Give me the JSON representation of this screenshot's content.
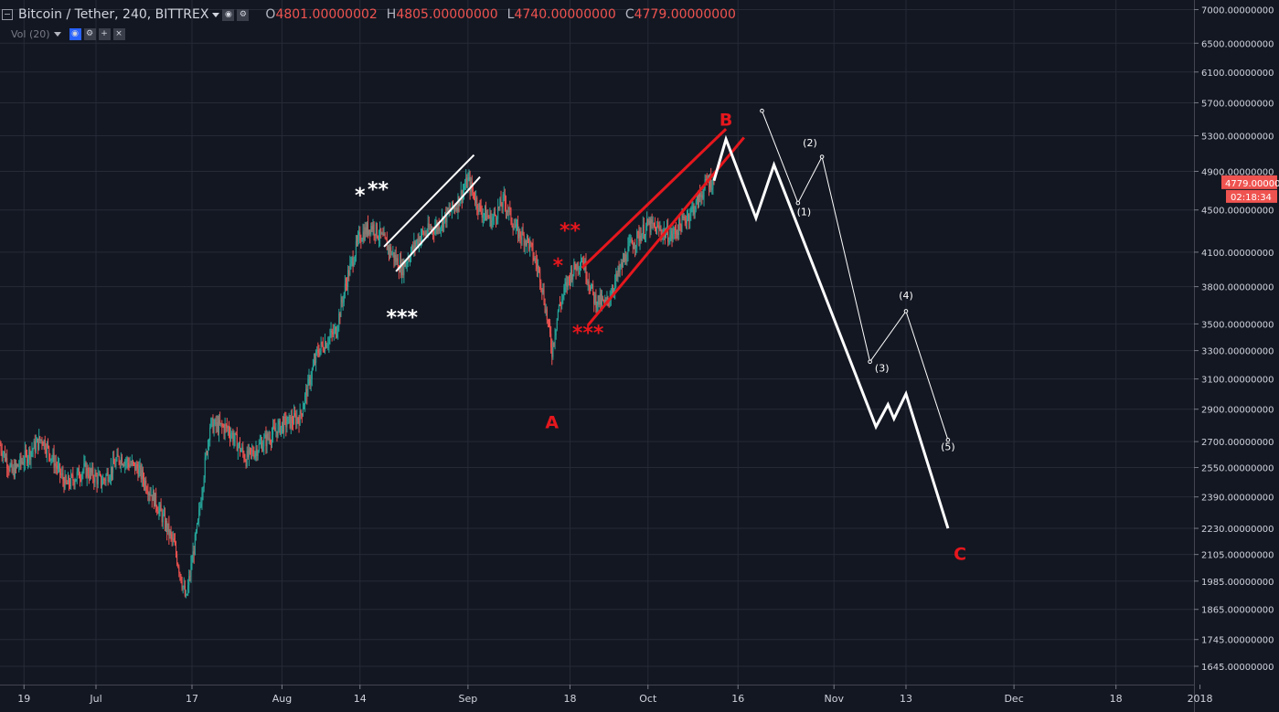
{
  "header": {
    "symbol": "Bitcoin / Tether, 240, BITTREX",
    "o_label": "O",
    "o_value": "4801.00000002",
    "h_label": "H",
    "h_value": "4805.00000000",
    "l_label": "L",
    "l_value": "4740.00000000",
    "c_label": "C",
    "c_value": "4779.00000000",
    "volume_label": "Vol (20)"
  },
  "colors": {
    "background": "#131722",
    "grid": "#262a36",
    "up_candle": "#26a69a",
    "down_candle": "#ef5350",
    "annotation_red": "#e5171d",
    "annotation_white": "#ffffff",
    "price_tag": "#ef5350"
  },
  "chart_data": {
    "type": "candlestick",
    "symbol": "BTC/USDT",
    "interval": "240",
    "exchange": "BITTREX",
    "y_axis": {
      "ticks": [
        7000,
        6500,
        6100,
        5700,
        5300,
        4900,
        4500,
        4100,
        3800,
        3500,
        3300,
        3100,
        2900,
        2700,
        2550,
        2390,
        2230,
        2105,
        1985,
        1865,
        1745,
        1645
      ],
      "tick_labels": [
        "7000.00000000",
        "6500.00000000",
        "6100.00000000",
        "5700.00000000",
        "5300.00000000",
        "4900.00000000",
        "4500.00000000",
        "4100.00000000",
        "3800.00000000",
        "3500.00000000",
        "3300.00000000",
        "3100.00000000",
        "2900.00000000",
        "2700.00000000",
        "2550.00000000",
        "2390.00000000",
        "2230.00000000",
        "2105.00000000",
        "1985.00000000",
        "1865.00000000",
        "1745.00000000",
        "1645.00000000"
      ],
      "scale": "log",
      "range": [
        1580,
        7150
      ]
    },
    "x_axis": {
      "range": [
        "2017-06-15",
        "2017-12-31"
      ],
      "tick_dates": [
        "2017-06-19",
        "2017-07-01",
        "2017-07-17",
        "2017-08-01",
        "2017-08-14",
        "2017-09-01",
        "2017-09-18",
        "2017-10-01",
        "2017-10-16",
        "2017-11-01",
        "2017-11-13",
        "2017-12-01",
        "2017-12-18",
        "2018-01-01"
      ],
      "tick_labels": [
        "19",
        "Jul",
        "17",
        "Aug",
        "14",
        "Sep",
        "18",
        "Oct",
        "16",
        "Nov",
        "13",
        "Dec",
        "18",
        "2018"
      ]
    },
    "price_anchors": [
      [
        "2017-06-15",
        2680
      ],
      [
        "2017-06-17",
        2520
      ],
      [
        "2017-06-19",
        2600
      ],
      [
        "2017-06-22",
        2720
      ],
      [
        "2017-06-26",
        2450
      ],
      [
        "2017-06-29",
        2540
      ],
      [
        "2017-07-02",
        2470
      ],
      [
        "2017-07-05",
        2610
      ],
      [
        "2017-07-08",
        2540
      ],
      [
        "2017-07-11",
        2360
      ],
      [
        "2017-07-14",
        2150
      ],
      [
        "2017-07-16",
        1900
      ],
      [
        "2017-07-18",
        2250
      ],
      [
        "2017-07-20",
        2800
      ],
      [
        "2017-07-23",
        2780
      ],
      [
        "2017-07-26",
        2600
      ],
      [
        "2017-07-29",
        2700
      ],
      [
        "2017-08-01",
        2800
      ],
      [
        "2017-08-04",
        2850
      ],
      [
        "2017-08-07",
        3300
      ],
      [
        "2017-08-10",
        3450
      ],
      [
        "2017-08-12",
        3900
      ],
      [
        "2017-08-14",
        4250
      ],
      [
        "2017-08-16",
        4350
      ],
      [
        "2017-08-18",
        4200
      ],
      [
        "2017-08-21",
        3950
      ],
      [
        "2017-08-24",
        4250
      ],
      [
        "2017-08-27",
        4350
      ],
      [
        "2017-08-30",
        4550
      ],
      [
        "2017-09-01",
        4800
      ],
      [
        "2017-09-03",
        4500
      ],
      [
        "2017-09-05",
        4400
      ],
      [
        "2017-09-07",
        4600
      ],
      [
        "2017-09-09",
        4300
      ],
      [
        "2017-09-11",
        4200
      ],
      [
        "2017-09-13",
        3900
      ],
      [
        "2017-09-15",
        3300
      ],
      [
        "2017-09-16",
        3600
      ],
      [
        "2017-09-18",
        3900
      ],
      [
        "2017-09-20",
        4050
      ],
      [
        "2017-09-22",
        3700
      ],
      [
        "2017-09-24",
        3650
      ],
      [
        "2017-09-26",
        3900
      ],
      [
        "2017-09-28",
        4150
      ],
      [
        "2017-10-01",
        4350
      ],
      [
        "2017-10-03",
        4300
      ],
      [
        "2017-10-05",
        4250
      ],
      [
        "2017-10-07",
        4400
      ],
      [
        "2017-10-09",
        4550
      ],
      [
        "2017-10-11",
        4800
      ],
      [
        "2017-10-12",
        4779
      ]
    ],
    "last_price": 4779,
    "last_price_label": "4779.00000000",
    "countdown_label": "02:18:34"
  },
  "annotations": {
    "wave_labels": [
      {
        "text": "A",
        "date": "2017-09-15",
        "price": 2780,
        "color": "#e5171d"
      },
      {
        "text": "B",
        "date": "2017-10-14",
        "price": 5420,
        "color": "#e5171d"
      },
      {
        "text": "C",
        "date": "2017-11-22",
        "price": 2080,
        "color": "#e5171d"
      }
    ],
    "star_labels": [
      {
        "text": "*",
        "date": "2017-08-14",
        "price": 4580,
        "color": "#ffffff"
      },
      {
        "text": "**",
        "date": "2017-08-17",
        "price": 4640,
        "color": "#ffffff"
      },
      {
        "text": "***",
        "date": "2017-08-21",
        "price": 3500,
        "color": "#ffffff"
      },
      {
        "text": "*",
        "date": "2017-09-16",
        "price": 3920,
        "color": "#e5171d"
      },
      {
        "text": "**",
        "date": "2017-09-18",
        "price": 4240,
        "color": "#e5171d"
      },
      {
        "text": "***",
        "date": "2017-09-21",
        "price": 3380,
        "color": "#e5171d"
      }
    ],
    "sub_wave_labels": [
      {
        "text": "(1)",
        "date": "2017-10-27",
        "price": 4450
      },
      {
        "text": "(2)",
        "date": "2017-10-28",
        "price": 5180
      },
      {
        "text": "(3)",
        "date": "2017-11-09",
        "price": 3150
      },
      {
        "text": "(4)",
        "date": "2017-11-13",
        "price": 3700
      },
      {
        "text": "(5)",
        "date": "2017-11-20",
        "price": 2650
      }
    ],
    "channels": [
      {
        "color": "#ffffff",
        "upper": [
          [
            "2017-08-18",
            4150
          ],
          [
            "2017-09-02",
            5080
          ]
        ],
        "lower": [
          [
            "2017-08-20",
            3930
          ],
          [
            "2017-09-03",
            4840
          ]
        ]
      },
      {
        "color": "#e5171d",
        "upper": [
          [
            "2017-09-20",
            3960
          ],
          [
            "2017-10-14",
            5380
          ]
        ],
        "lower": [
          [
            "2017-09-21",
            3490
          ],
          [
            "2017-10-17",
            5280
          ]
        ]
      }
    ],
    "main_projection": [
      [
        "2017-10-12",
        4800
      ],
      [
        "2017-10-14",
        5260
      ],
      [
        "2017-10-19",
        4420
      ],
      [
        "2017-10-22",
        4970
      ],
      [
        "2017-11-08",
        2790
      ],
      [
        "2017-11-10",
        2930
      ],
      [
        "2017-11-11",
        2840
      ],
      [
        "2017-11-13",
        3000
      ],
      [
        "2017-11-20",
        2230
      ]
    ],
    "alt_projection": [
      [
        "2017-10-20",
        5600
      ],
      [
        "2017-10-26",
        4570
      ],
      [
        "2017-10-30",
        5060
      ],
      [
        "2017-11-07",
        3220
      ],
      [
        "2017-11-13",
        3600
      ],
      [
        "2017-11-20",
        2710
      ]
    ]
  }
}
